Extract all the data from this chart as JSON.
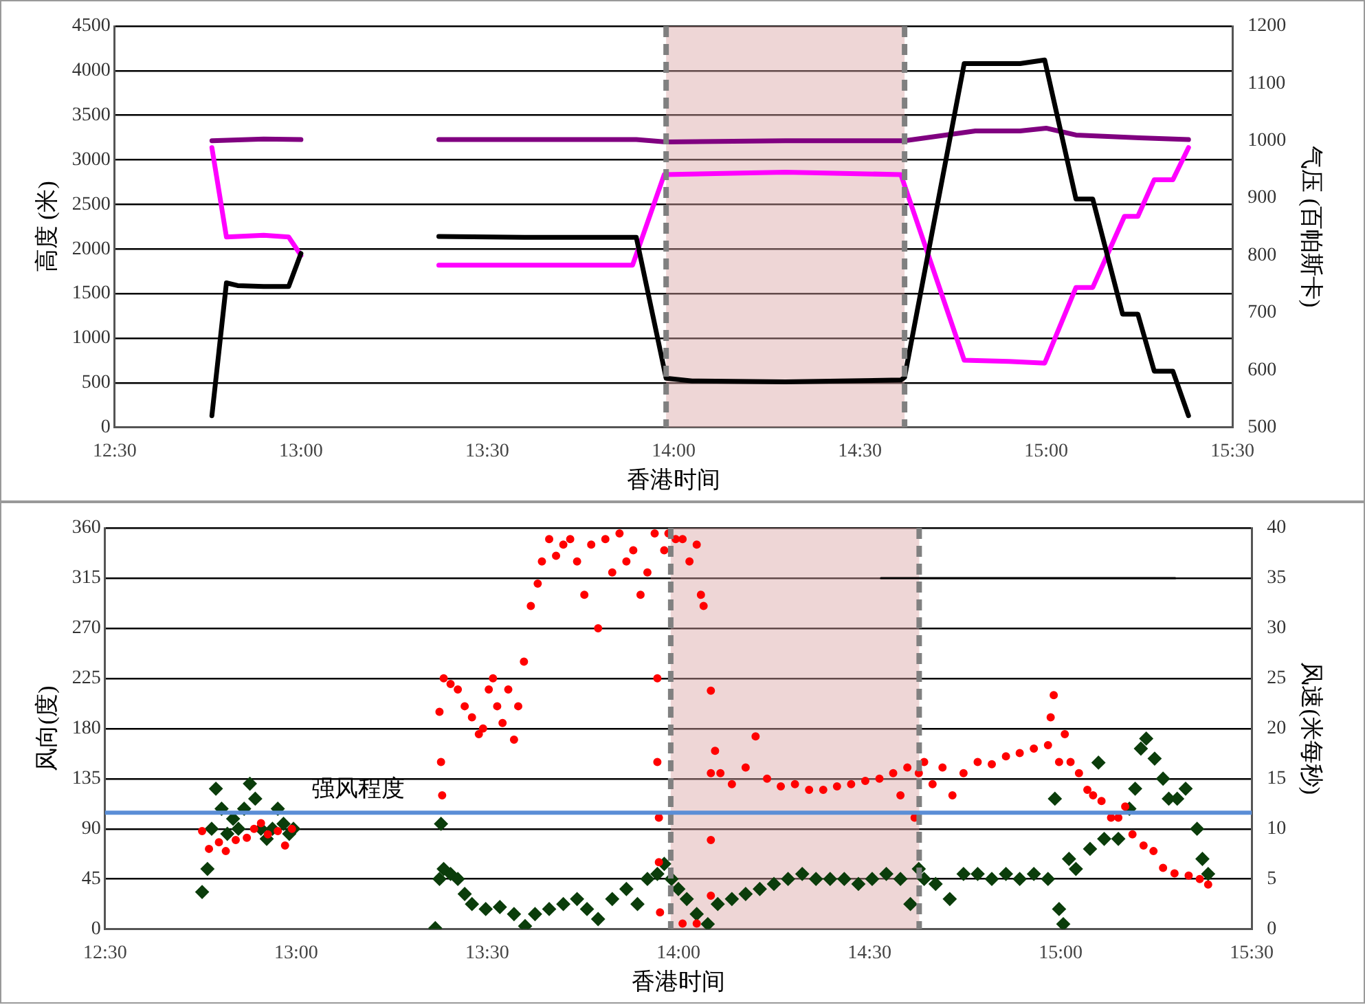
{
  "chart_data": [
    {
      "type": "line",
      "xlabel": "香港时间",
      "ylabel": "高度 (米)",
      "y2label": "气压 (百帕斯卡)",
      "xlim": [
        12.5,
        15.5
      ],
      "xticks": [
        {
          "value": 12.5,
          "label": "12:30"
        },
        {
          "value": 13,
          "label": "13:00"
        },
        {
          "value": 13.5,
          "label": "13:30"
        },
        {
          "value": 14,
          "label": "14:00"
        },
        {
          "value": 14.5,
          "label": "14:30"
        },
        {
          "value": 15,
          "label": "15:00"
        },
        {
          "value": 15.5,
          "label": "15:30"
        }
      ],
      "ylim": [
        0,
        4500
      ],
      "yticks": [
        0,
        500,
        1000,
        1500,
        2000,
        2500,
        3000,
        3500,
        4000,
        4500
      ],
      "y2lim": [
        500,
        1200
      ],
      "y2ticks": [
        500,
        600,
        700,
        800,
        900,
        1000,
        1100,
        1200
      ],
      "grid": "y",
      "marker": "none",
      "bands": [
        {
          "axis": "x",
          "from": 13.98,
          "to": 14.62,
          "color": "#d9a3a3"
        }
      ],
      "ref_lines": [
        {
          "axis": "x",
          "value": 13.98,
          "color": "#808080",
          "line_style": "dashed"
        },
        {
          "axis": "x",
          "value": 14.62,
          "color": "#808080",
          "line_style": "dashed"
        }
      ],
      "series": [
        {
          "color": "#000000",
          "x": [
            12.761,
            12.8,
            12.83,
            12.9,
            12.967,
            13.0,
            13.2,
            13.37,
            13.6,
            13.9,
            13.98,
            14.05,
            14.3,
            14.61,
            14.62,
            14.78,
            14.93,
            14.996,
            15.08,
            15.125,
            15.205,
            15.246,
            15.29,
            15.34,
            15.382
          ],
          "values": [
            130,
            1620,
            1590,
            1580,
            1580,
            1950,
            null,
            2140,
            2130,
            2130,
            550,
            520,
            510,
            530,
            560,
            4080,
            4080,
            4120,
            2560,
            2560,
            1270,
            1270,
            630,
            630,
            130
          ]
        },
        {
          "color": "#ff00ff",
          "axis": "y2",
          "x": [
            12.761,
            12.8,
            12.9,
            12.967,
            13.0,
            13.2,
            13.37,
            13.6,
            13.89,
            13.975,
            14.3,
            14.61,
            14.78,
            14.9,
            14.996,
            15.08,
            15.125,
            15.21,
            15.246,
            15.29,
            15.34,
            15.382
          ],
          "values": [
            988,
            832,
            835,
            832,
            800,
            null,
            783,
            783,
            783,
            941,
            945,
            941,
            617,
            615,
            612,
            744,
            744,
            868,
            868,
            932,
            932,
            988
          ]
        },
        {
          "color": "#800080",
          "axis": "y2",
          "x": [
            12.761,
            12.9,
            13.0,
            13.2,
            13.37,
            13.9,
            13.98,
            14.3,
            14.62,
            14.81,
            14.93,
            15.0,
            15.08,
            15.25,
            15.382
          ],
          "values": [
            1000,
            1003,
            1002,
            null,
            1002,
            1002,
            998,
            1000,
            1000,
            1017,
            1017,
            1022,
            1010,
            1005,
            1002
          ]
        }
      ]
    },
    {
      "type": "scatter",
      "xlabel": "香港时间",
      "ylabel": "风向(度)",
      "y2label": "风速(米每秒)",
      "xlim": [
        12.5,
        15.5
      ],
      "xticks": [
        {
          "value": 12.5,
          "label": "12:30"
        },
        {
          "value": 13,
          "label": "13:00"
        },
        {
          "value": 13.5,
          "label": "13:30"
        },
        {
          "value": 14,
          "label": "14:00"
        },
        {
          "value": 14.5,
          "label": "14:30"
        },
        {
          "value": 15,
          "label": "15:00"
        },
        {
          "value": 15.5,
          "label": "15:30"
        }
      ],
      "ylim": [
        0,
        360
      ],
      "yticks": [
        0,
        45,
        90,
        135,
        180,
        225,
        270,
        315,
        360
      ],
      "y2lim": [
        0,
        40
      ],
      "y2ticks": [
        0,
        5,
        10,
        15,
        20,
        25,
        30,
        35,
        40
      ],
      "grid": "y",
      "bands": [
        {
          "axis": "x",
          "from": 13.98,
          "to": 14.63,
          "color": "#d9a3a3"
        }
      ],
      "ref_lines": [
        {
          "axis": "x",
          "value": 13.98,
          "color": "#808080",
          "line_style": "dashed"
        },
        {
          "axis": "x",
          "value": 14.63,
          "color": "#808080",
          "line_style": "dashed"
        },
        {
          "axis": "y2",
          "value": 11.6,
          "label": "强风程度",
          "color": "#5b8ed6"
        }
      ],
      "series": [
        {
          "color": "#ff0000",
          "marker": "circle",
          "x": [
            12.754,
            12.772,
            12.798,
            12.816,
            12.842,
            12.871,
            12.89,
            12.908,
            12.926,
            12.952,
            12.971,
            12.989,
            13.375,
            13.379,
            13.382,
            13.386,
            13.404,
            13.423,
            13.441,
            13.46,
            13.478,
            13.489,
            13.504,
            13.515,
            13.526,
            13.54,
            13.555,
            13.57,
            13.581,
            13.596,
            13.614,
            13.632,
            13.643,
            13.662,
            13.68,
            13.699,
            13.717,
            13.735,
            13.754,
            13.772,
            13.79,
            13.809,
            13.827,
            13.846,
            13.864,
            13.882,
            13.901,
            13.919,
            13.938,
            13.945,
            13.945,
            13.949,
            13.949,
            13.952,
            13.963,
            13.974,
            13.993,
            14.011,
            14.011,
            14.029,
            14.048,
            14.048,
            14.059,
            14.066,
            14.085,
            14.085,
            14.085,
            14.085,
            14.096,
            14.11,
            14.14,
            14.176,
            14.202,
            14.232,
            14.268,
            14.305,
            14.342,
            14.379,
            14.415,
            14.452,
            14.489,
            14.526,
            14.562,
            14.581,
            14.599,
            14.618,
            14.629,
            14.643,
            14.665,
            14.691,
            14.717,
            14.746,
            14.783,
            14.82,
            14.857,
            14.893,
            14.93,
            14.967,
            14.974,
            14.982,
            14.996,
            15.011,
            15.026,
            15.048,
            15.07,
            15.085,
            15.107,
            15.132,
            15.151,
            15.169,
            15.188,
            15.217,
            15.243,
            15.268,
            15.298,
            15.335,
            15.364,
            15.386
          ],
          "values": [
            88,
            72,
            78,
            70,
            80,
            82,
            90,
            95,
            85,
            88,
            75,
            90,
            195,
            150,
            120,
            225,
            220,
            215,
            200,
            190,
            175,
            180,
            215,
            225,
            200,
            185,
            215,
            170,
            200,
            240,
            290,
            310,
            330,
            350,
            335,
            345,
            350,
            330,
            300,
            345,
            270,
            350,
            320,
            355,
            330,
            340,
            300,
            320,
            355,
            225,
            150,
            100,
            60,
            15,
            340,
            355,
            350,
            5,
            350,
            330,
            5,
            345,
            300,
            290,
            214,
            140,
            80,
            30,
            160,
            140,
            130,
            145,
            173,
            135,
            128,
            130,
            125,
            125,
            128,
            130,
            133,
            135,
            140,
            120,
            145,
            100,
            140,
            150,
            130,
            145,
            120,
            140,
            150,
            148,
            155,
            158,
            162,
            165,
            190,
            210,
            150,
            175,
            150,
            140,
            125,
            120,
            115,
            100,
            100,
            110,
            85,
            75,
            70,
            55,
            50,
            48,
            45,
            40
          ]
        },
        {
          "color": "#0b3d0b",
          "marker": "diamond",
          "axis": "y2",
          "x": [
            12.754,
            12.768,
            12.779,
            12.79,
            12.805,
            12.82,
            12.835,
            12.849,
            12.864,
            12.879,
            12.893,
            12.908,
            12.923,
            12.938,
            12.952,
            12.967,
            12.982,
            12.993,
            13.364,
            13.375,
            13.379,
            13.386,
            13.404,
            13.423,
            13.441,
            13.46,
            13.496,
            13.533,
            13.57,
            13.599,
            13.625,
            13.662,
            13.699,
            13.735,
            13.761,
            13.79,
            13.827,
            13.864,
            13.893,
            13.919,
            13.945,
            13.963,
            13.982,
            14.0,
            14.022,
            14.048,
            14.077,
            14.103,
            14.14,
            14.176,
            14.213,
            14.25,
            14.287,
            14.324,
            14.36,
            14.397,
            14.434,
            14.471,
            14.507,
            14.544,
            14.581,
            14.607,
            14.629,
            14.643,
            14.673,
            14.71,
            14.746,
            14.783,
            14.82,
            14.857,
            14.893,
            14.93,
            14.967,
            14.985,
            14.996,
            15.007,
            15.022,
            15.04,
            15.077,
            15.099,
            15.114,
            15.151,
            15.18,
            15.195,
            15.21,
            15.224,
            15.246,
            15.268,
            15.283,
            15.305,
            15.327,
            15.357,
            15.371,
            15.386
          ],
          "values": [
            3.7,
            6,
            10,
            14,
            12,
            9.5,
            11,
            10,
            12,
            14.5,
            13,
            10,
            9,
            10,
            12,
            10.5,
            9.5,
            10,
            0.1,
            5,
            10.5,
            6,
            5.5,
            5,
            3.5,
            2.5,
            2,
            2.2,
            1.5,
            0.3,
            1.5,
            2,
            2.5,
            3,
            2,
            1,
            3,
            4,
            2.5,
            5,
            5.5,
            6.5,
            5,
            4,
            3,
            1.5,
            0.5,
            2.5,
            3,
            3.5,
            4,
            4.5,
            5,
            5.5,
            5,
            5,
            5,
            4.5,
            5,
            5.5,
            5,
            2.5,
            6,
            5,
            4.5,
            3,
            5.5,
            5.5,
            5,
            5.5,
            5,
            5.5,
            5,
            13,
            2,
            0.5,
            7,
            6,
            8,
            16.6,
            9,
            9,
            12,
            14,
            18,
            19,
            17,
            15,
            13,
            13,
            14,
            10,
            7,
            5.5
          ]
        },
        {
          "type": "line",
          "color": "#000000",
          "marker": "none",
          "axis": "y2",
          "x": [
            14.53,
            15.3
          ],
          "values": [
            35,
            35
          ]
        }
      ]
    }
  ]
}
